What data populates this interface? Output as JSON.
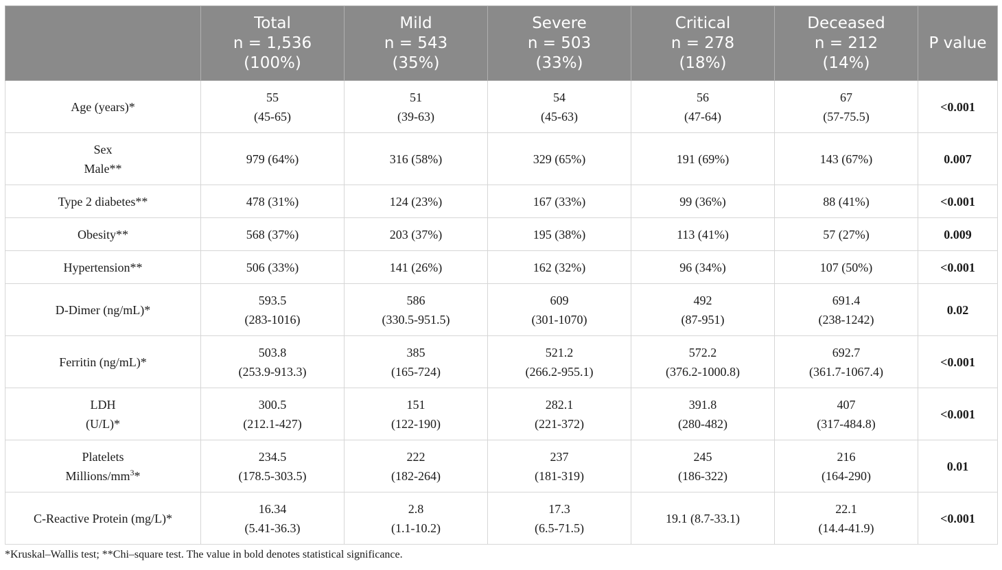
{
  "headers": [
    {
      "lines": [
        ""
      ]
    },
    {
      "lines": [
        "Total",
        "n = 1,536",
        "(100%)"
      ]
    },
    {
      "lines": [
        "Mild",
        "n = 543",
        "(35%)"
      ]
    },
    {
      "lines": [
        "Severe",
        "n = 503",
        "(33%)"
      ]
    },
    {
      "lines": [
        "Critical",
        "n = 278",
        "(18%)"
      ]
    },
    {
      "lines": [
        "Deceased",
        "n = 212",
        "(14%)"
      ]
    },
    {
      "lines": [
        "P value"
      ]
    }
  ],
  "rows": [
    {
      "label": [
        "Age (years)*"
      ],
      "cells": [
        [
          "55",
          "(45-65)"
        ],
        [
          "51",
          "(39-63)"
        ],
        [
          "54",
          "(45-63)"
        ],
        [
          "56",
          "(47-64)"
        ],
        [
          "67",
          "(57-75.5)"
        ]
      ],
      "p": "<0.001"
    },
    {
      "label": [
        "Sex",
        "Male**"
      ],
      "cells": [
        [
          "979 (64%)"
        ],
        [
          "316 (58%)"
        ],
        [
          "329 (65%)"
        ],
        [
          "191 (69%)"
        ],
        [
          "143 (67%)"
        ]
      ],
      "p": "0.007"
    },
    {
      "label": [
        "Type 2 diabetes**"
      ],
      "cells": [
        [
          "478 (31%)"
        ],
        [
          "124 (23%)"
        ],
        [
          "167 (33%)"
        ],
        [
          "99 (36%)"
        ],
        [
          "88 (41%)"
        ]
      ],
      "p": "<0.001"
    },
    {
      "label": [
        "Obesity**"
      ],
      "cells": [
        [
          "568 (37%)"
        ],
        [
          "203 (37%)"
        ],
        [
          "195 (38%)"
        ],
        [
          "113 (41%)"
        ],
        [
          "57 (27%)"
        ]
      ],
      "p": "0.009"
    },
    {
      "label": [
        "Hypertension**"
      ],
      "cells": [
        [
          "506 (33%)"
        ],
        [
          "141 (26%)"
        ],
        [
          "162 (32%)"
        ],
        [
          "96 (34%)"
        ],
        [
          "107 (50%)"
        ]
      ],
      "p": "<0.001"
    },
    {
      "label": [
        "D-Dimer (ng/mL)*"
      ],
      "cells": [
        [
          "593.5",
          "(283-1016)"
        ],
        [
          "586",
          "(330.5-951.5)"
        ],
        [
          "609",
          "(301-1070)"
        ],
        [
          "492",
          "(87-951)"
        ],
        [
          "691.4",
          "(238-1242)"
        ]
      ],
      "p": "0.02"
    },
    {
      "label": [
        "Ferritin (ng/mL)*"
      ],
      "cells": [
        [
          "503.8",
          "(253.9-913.3)"
        ],
        [
          "385",
          "(165-724)"
        ],
        [
          "521.2",
          "(266.2-955.1)"
        ],
        [
          "572.2",
          "(376.2-1000.8)"
        ],
        [
          "692.7",
          "(361.7-1067.4)"
        ]
      ],
      "p": "<0.001"
    },
    {
      "label": [
        "LDH",
        "(U/L)*"
      ],
      "cells": [
        [
          "300.5",
          "(212.1-427)"
        ],
        [
          "151",
          "(122-190)"
        ],
        [
          "282.1",
          "(221-372)"
        ],
        [
          "391.8",
          "(280-482)"
        ],
        [
          "407",
          "(317-484.8)"
        ]
      ],
      "p": "<0.001"
    },
    {
      "label": [
        "Platelets",
        "Millions/mm"
      ],
      "label_sup": "3",
      "label_suffix": "*",
      "cells": [
        [
          "234.5",
          "(178.5-303.5)"
        ],
        [
          "222",
          "(182-264)"
        ],
        [
          "237",
          "(181-319)"
        ],
        [
          "245",
          "(186-322)"
        ],
        [
          "216",
          "(164-290)"
        ]
      ],
      "p": "0.01"
    },
    {
      "label": [
        "C-Reactive Protein (mg/L)*"
      ],
      "cells": [
        [
          "16.34",
          "(5.41-36.3)"
        ],
        [
          "2.8",
          "(1.1-10.2)"
        ],
        [
          "17.3",
          "(6.5-71.5)"
        ],
        [
          "19.1 (8.7-33.1)"
        ],
        [
          "22.1",
          "(14.4-41.9)"
        ]
      ],
      "p": "<0.001"
    }
  ],
  "footnote": "*Kruskal–Wallis test; **Chi–square test. The value in bold denotes statistical significance."
}
